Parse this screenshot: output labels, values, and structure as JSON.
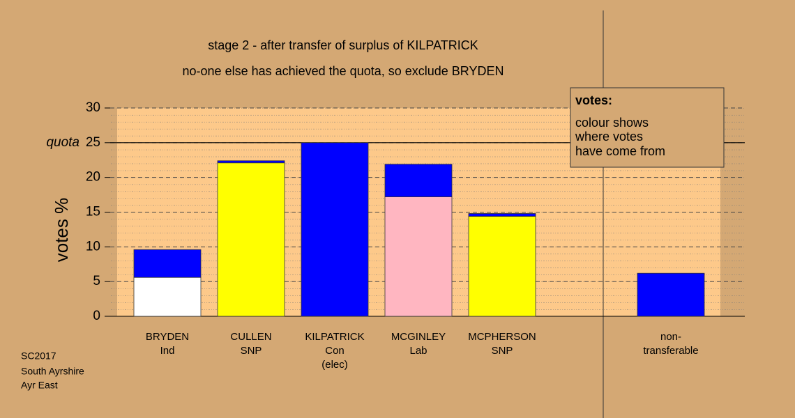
{
  "chart_data": {
    "type": "stacked_bar",
    "title": [
      "stage 2 - after transfer of surplus of KILPATRICK",
      "no-one else has achieved the quota, so exclude BRYDEN"
    ],
    "ylabel": "votes %",
    "categories": [
      [
        "BRYDEN",
        "Ind"
      ],
      [
        "CULLEN",
        "SNP"
      ],
      [
        "KILPATRICK",
        "Con",
        "(elec)"
      ],
      [
        "MCGINLEY",
        "Lab"
      ],
      [
        "MCPHERSON",
        "SNP"
      ],
      [
        "non-",
        "transferable"
      ]
    ],
    "series": [
      {
        "colors": [
          "#ffffff",
          "#ffff00",
          "#0000ff",
          "#ffb6c1",
          "#ffff00",
          null
        ],
        "values": [
          5.6,
          22.1,
          25.0,
          17.2,
          14.4,
          null
        ]
      },
      {
        "color": "#0000ff",
        "values": [
          4.0,
          0.3,
          null,
          4.7,
          0.4,
          6.2
        ]
      }
    ],
    "ylim": [
      0,
      30
    ],
    "yticks": [
      0,
      5,
      10,
      15,
      20,
      25,
      30
    ],
    "grid": true,
    "quota": {
      "label": "quota",
      "value": 25
    },
    "legend_box": {
      "title": "votes:",
      "lines": [
        "colour shows",
        "where votes",
        "have come from"
      ]
    },
    "footnote": [
      "SC2017",
      "South Ayrshire",
      "Ayr East"
    ]
  }
}
